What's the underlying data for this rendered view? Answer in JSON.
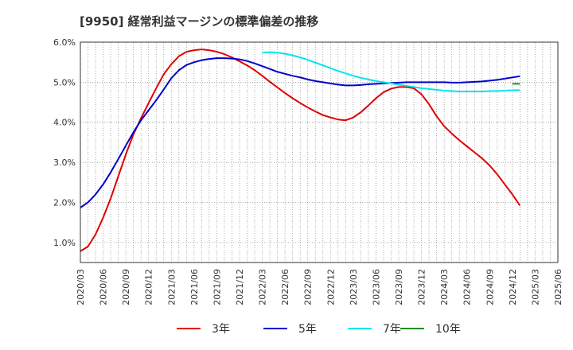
{
  "chart_data": {
    "type": "line",
    "title": "[9950]  経常利益マージンの標準偏差の推移",
    "xlabel": "",
    "ylabel": "",
    "ylim": [
      0.5,
      6.0
    ],
    "y_ticks": [
      "1.0%",
      "2.0%",
      "3.0%",
      "4.0%",
      "5.0%",
      "6.0%"
    ],
    "y_tick_values": [
      1.0,
      2.0,
      3.0,
      4.0,
      5.0,
      6.0
    ],
    "x_ticks": [
      "2020/03",
      "2020/06",
      "2020/09",
      "2020/12",
      "2021/03",
      "2021/06",
      "2021/09",
      "2021/12",
      "2022/03",
      "2022/06",
      "2022/09",
      "2022/12",
      "2023/03",
      "2023/06",
      "2023/09",
      "2023/12",
      "2024/03",
      "2024/06",
      "2024/09",
      "2024/12",
      "2025/03",
      "2025/06"
    ],
    "grid": true,
    "legend_position": "bottom",
    "series": [
      {
        "name": "3年",
        "color": "#e00000",
        "start_index": 0,
        "values": [
          0.78,
          0.9,
          1.2,
          1.62,
          2.1,
          2.65,
          3.2,
          3.7,
          4.1,
          4.48,
          4.85,
          5.2,
          5.45,
          5.65,
          5.76,
          5.8,
          5.82,
          5.8,
          5.76,
          5.7,
          5.62,
          5.52,
          5.42,
          5.3,
          5.16,
          5.01,
          4.87,
          4.73,
          4.6,
          4.48,
          4.37,
          4.27,
          4.18,
          4.12,
          4.07,
          4.05,
          4.12,
          4.25,
          4.42,
          4.6,
          4.75,
          4.84,
          4.88,
          4.88,
          4.85,
          4.7,
          4.45,
          4.15,
          3.9,
          3.72,
          3.55,
          3.4,
          3.25,
          3.1,
          2.92,
          2.7,
          2.45,
          2.2,
          1.92
        ]
      },
      {
        "name": "5年",
        "color": "#0000cc",
        "start_index": 0,
        "values": [
          1.87,
          2.0,
          2.2,
          2.45,
          2.75,
          3.08,
          3.42,
          3.75,
          4.05,
          4.3,
          4.55,
          4.82,
          5.1,
          5.3,
          5.43,
          5.5,
          5.55,
          5.58,
          5.6,
          5.6,
          5.59,
          5.57,
          5.53,
          5.47,
          5.4,
          5.33,
          5.26,
          5.21,
          5.16,
          5.12,
          5.07,
          5.03,
          5.0,
          4.97,
          4.94,
          4.92,
          4.92,
          4.93,
          4.95,
          4.96,
          4.97,
          4.98,
          4.99,
          5.0,
          5.0,
          5.0,
          5.0,
          5.0,
          5.0,
          4.99,
          4.99,
          5.0,
          5.01,
          5.02,
          5.04,
          5.06,
          5.09,
          5.12,
          5.15
        ]
      },
      {
        "name": "7年",
        "color": "#00e5ee",
        "start_index": 24,
        "values": [
          5.74,
          5.75,
          5.74,
          5.71,
          5.67,
          5.62,
          5.56,
          5.49,
          5.42,
          5.35,
          5.28,
          5.22,
          5.16,
          5.11,
          5.07,
          5.03,
          5.0,
          4.97,
          4.94,
          4.91,
          4.88,
          4.85,
          4.83,
          4.81,
          4.79,
          4.78,
          4.77,
          4.77,
          4.77,
          4.77,
          4.78,
          4.78,
          4.79,
          4.8,
          4.8
        ]
      },
      {
        "name": "10年",
        "color": "#228b22",
        "start_index": 57,
        "values": [
          4.96,
          4.96
        ]
      }
    ]
  }
}
